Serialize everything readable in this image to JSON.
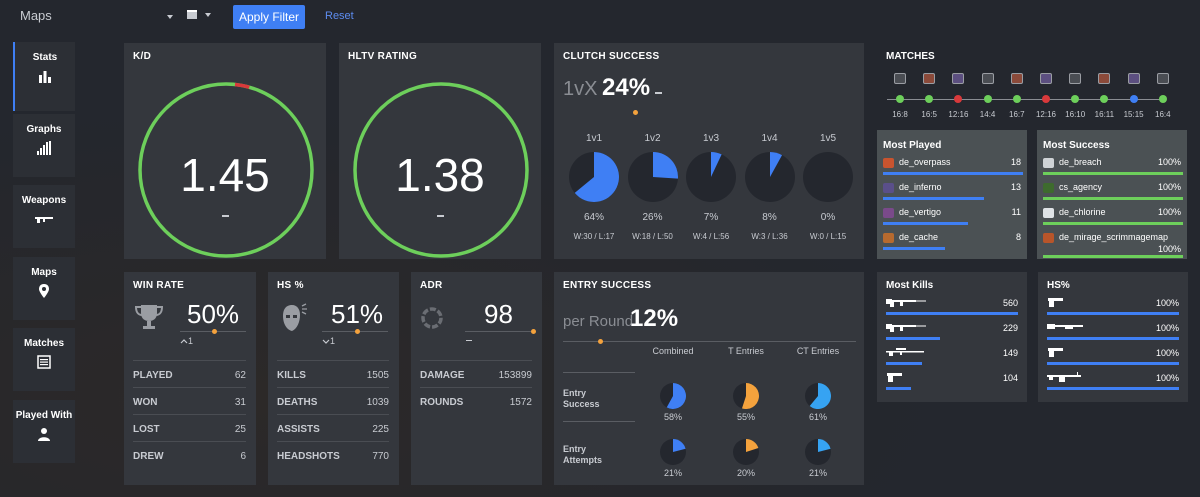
{
  "filter": {
    "maps_label": "Maps",
    "apply_label": "Apply Filter",
    "reset_label": "Reset"
  },
  "sidebar": {
    "items": [
      {
        "label": "Stats",
        "icon": "bar-chart-icon"
      },
      {
        "label": "Graphs",
        "icon": "signal-bars-icon"
      },
      {
        "label": "Weapons",
        "icon": "rifle-icon"
      },
      {
        "label": "Maps",
        "icon": "map-pin-icon"
      },
      {
        "label": "Matches",
        "icon": "list-icon"
      },
      {
        "label": "Played With",
        "icon": "user-icon"
      }
    ]
  },
  "kd": {
    "title": "K/D",
    "value": "1.45",
    "ring_fraction": 0.955
  },
  "hltv": {
    "title": "HLTV RATING",
    "value": "1.38"
  },
  "clutch": {
    "title": "CLUTCH SUCCESS",
    "prefix": "1vX",
    "value": "24%",
    "items": [
      {
        "label": "1v1",
        "pct": "64%",
        "frac": 0.64,
        "wl": "W:30 / L:17"
      },
      {
        "label": "1v2",
        "pct": "26%",
        "frac": 0.26,
        "wl": "W:18 / L:50"
      },
      {
        "label": "1v3",
        "pct": "7%",
        "frac": 0.07,
        "wl": "W:4 / L:56"
      },
      {
        "label": "1v4",
        "pct": "8%",
        "frac": 0.08,
        "wl": "W:3 / L:36"
      },
      {
        "label": "1v5",
        "pct": "0%",
        "frac": 0.0,
        "wl": "W:0 / L:15"
      }
    ]
  },
  "matches": {
    "title": "MATCHES",
    "items": [
      {
        "score": "16:8",
        "result": "win"
      },
      {
        "score": "16:5",
        "result": "win"
      },
      {
        "score": "12:16",
        "result": "loss"
      },
      {
        "score": "14:4",
        "result": "win"
      },
      {
        "score": "16:7",
        "result": "win"
      },
      {
        "score": "12:16",
        "result": "loss"
      },
      {
        "score": "16:10",
        "result": "win"
      },
      {
        "score": "16:11",
        "result": "win"
      },
      {
        "score": "15:15",
        "result": "draw"
      },
      {
        "score": "16:4",
        "result": "win"
      }
    ]
  },
  "most_played": {
    "title": "Most Played",
    "items": [
      {
        "name": "de_overpass",
        "value": "18",
        "frac": 1.0
      },
      {
        "name": "de_inferno",
        "value": "13",
        "frac": 0.72
      },
      {
        "name": "de_vertigo",
        "value": "11",
        "frac": 0.61
      },
      {
        "name": "de_cache",
        "value": "8",
        "frac": 0.44
      }
    ]
  },
  "most_success": {
    "title": "Most Success",
    "items": [
      {
        "name": "de_breach",
        "value": "100%"
      },
      {
        "name": "cs_agency",
        "value": "100%"
      },
      {
        "name": "de_chlorine",
        "value": "100%"
      },
      {
        "name": "de_mirage_scrimmagemap",
        "value": "100%"
      }
    ]
  },
  "winrate": {
    "title": "WIN RATE",
    "value": "50%",
    "trend": "1",
    "rows": [
      {
        "k": "PLAYED",
        "v": "62"
      },
      {
        "k": "WON",
        "v": "31"
      },
      {
        "k": "LOST",
        "v": "25"
      },
      {
        "k": "DREW",
        "v": "6"
      }
    ]
  },
  "hs": {
    "title": "HS %",
    "value": "51%",
    "trend": "1",
    "rows": [
      {
        "k": "KILLS",
        "v": "1505"
      },
      {
        "k": "DEATHS",
        "v": "1039"
      },
      {
        "k": "ASSISTS",
        "v": "225"
      },
      {
        "k": "HEADSHOTS",
        "v": "770"
      }
    ]
  },
  "adr": {
    "title": "ADR",
    "value": "98",
    "rows": [
      {
        "k": "DAMAGE",
        "v": "153899"
      },
      {
        "k": "ROUNDS",
        "v": "1572"
      }
    ]
  },
  "entry": {
    "title": "ENTRY SUCCESS",
    "prefix": "per Round",
    "value": "12%",
    "columns": [
      "Combined",
      "T Entries",
      "CT Entries"
    ],
    "rows": [
      {
        "label": "Entry Success",
        "cells": [
          {
            "pct": "58%",
            "frac": 0.58,
            "color": "#3f7ff4"
          },
          {
            "pct": "55%",
            "frac": 0.55,
            "color": "#f4a23d"
          },
          {
            "pct": "61%",
            "frac": 0.61,
            "color": "#36a3f2"
          }
        ]
      },
      {
        "label": "Entry Attempts",
        "cells": [
          {
            "pct": "21%",
            "frac": 0.21,
            "color": "#3f7ff4"
          },
          {
            "pct": "20%",
            "frac": 0.2,
            "color": "#f4a23d"
          },
          {
            "pct": "21%",
            "frac": 0.21,
            "color": "#36a3f2"
          }
        ]
      }
    ]
  },
  "most_kills": {
    "title": "Most Kills",
    "items": [
      {
        "value": "560",
        "frac": 1.0,
        "icon": "rifle-icon"
      },
      {
        "value": "229",
        "frac": 0.41,
        "icon": "rifle-icon"
      },
      {
        "value": "149",
        "frac": 0.27,
        "icon": "sniper-icon"
      },
      {
        "value": "104",
        "frac": 0.19,
        "icon": "pistol-icon"
      }
    ]
  },
  "hs_weapons": {
    "title": "HS%",
    "items": [
      {
        "value": "100%",
        "icon": "pistol-icon"
      },
      {
        "value": "100%",
        "icon": "shotgun-icon"
      },
      {
        "value": "100%",
        "icon": "pistol-icon"
      },
      {
        "value": "100%",
        "icon": "machine-gun-icon"
      }
    ]
  }
}
